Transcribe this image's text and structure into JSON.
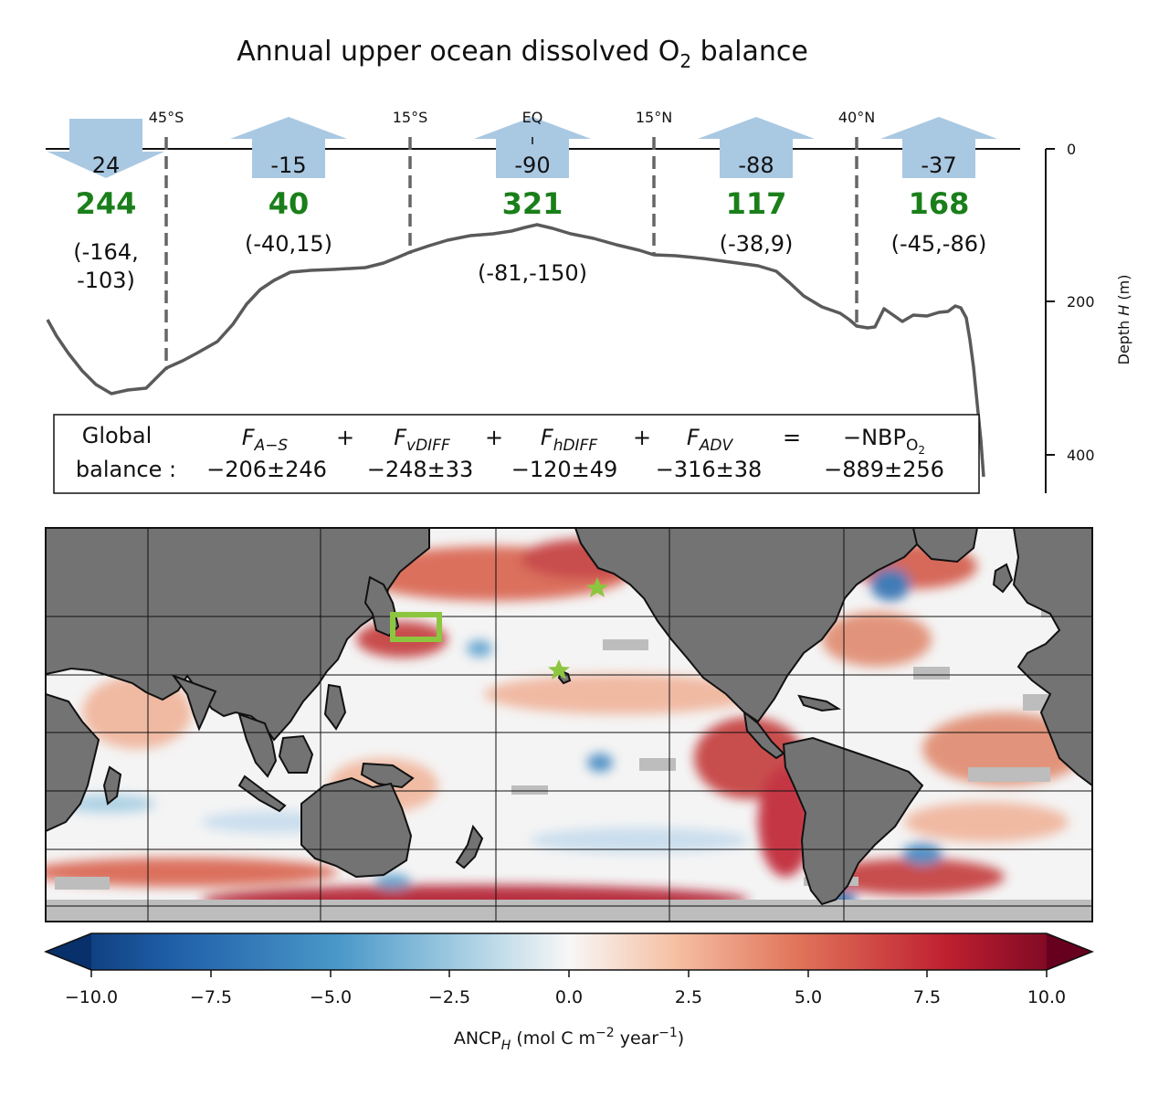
{
  "title": {
    "main": "Annual upper ocean dissolved O",
    "sub": "2",
    "tail": " balance"
  },
  "latitude_labels": [
    "45°S",
    "15°S",
    "EQ",
    "15°N",
    "40°N"
  ],
  "regions": [
    {
      "flux": "24",
      "arrow": "down",
      "green": "244",
      "range_lines": [
        "(-164,",
        "-103)"
      ]
    },
    {
      "flux": "-15",
      "arrow": "up",
      "green": "40",
      "range_lines": [
        "(-40,15)"
      ]
    },
    {
      "flux": "-90",
      "arrow": "up",
      "green": "321",
      "range_lines": [
        "(-81,-150)"
      ]
    },
    {
      "flux": "-88",
      "arrow": "up",
      "green": "117",
      "range_lines": [
        "(-38,9)"
      ]
    },
    {
      "flux": "-37",
      "arrow": "up",
      "green": "168",
      "range_lines": [
        "(-45,-86)"
      ]
    }
  ],
  "depth_axis": {
    "label": "Depth ",
    "label_var": "H",
    "label_unit": " (m)",
    "ticks": [
      "0",
      "200",
      "400"
    ]
  },
  "global_balance": {
    "label_line1": "Global",
    "label_line2": "balance :",
    "terms": [
      {
        "symbol": "F",
        "sub": "A−S",
        "value": "−206±246"
      },
      {
        "symbol": "F",
        "sub": "vDIFF",
        "value": "−248±33"
      },
      {
        "symbol": "F",
        "sub": "hDIFF",
        "value": "−120±49"
      },
      {
        "symbol": "F",
        "sub": "ADV",
        "value": "−316±38"
      }
    ],
    "plus": "+",
    "equals": "=",
    "rhs_symbol": "−NBP",
    "rhs_sub": "O",
    "rhs_subsub": "2",
    "rhs_value": "−889±256"
  },
  "colorbar": {
    "ticks": [
      "−10.0",
      "−7.5",
      "−5.0",
      "−2.5",
      "0.0",
      "2.5",
      "5.0",
      "7.5",
      "10.0"
    ],
    "label_main": "ANCP",
    "label_sub": "H",
    "label_unit": " (mol C m",
    "label_exp1": "−2",
    "label_mid": " year",
    "label_exp2": "−1",
    "label_end": ")"
  },
  "colors": {
    "arrow": "#a9c8e2",
    "green_value": "#1a7f1a",
    "land": "#737373",
    "no_data": "#bdbdbd",
    "box_marker": "#8cc63f",
    "star_marker": "#8cc63f",
    "profile_line": "#5a5a5a"
  }
}
